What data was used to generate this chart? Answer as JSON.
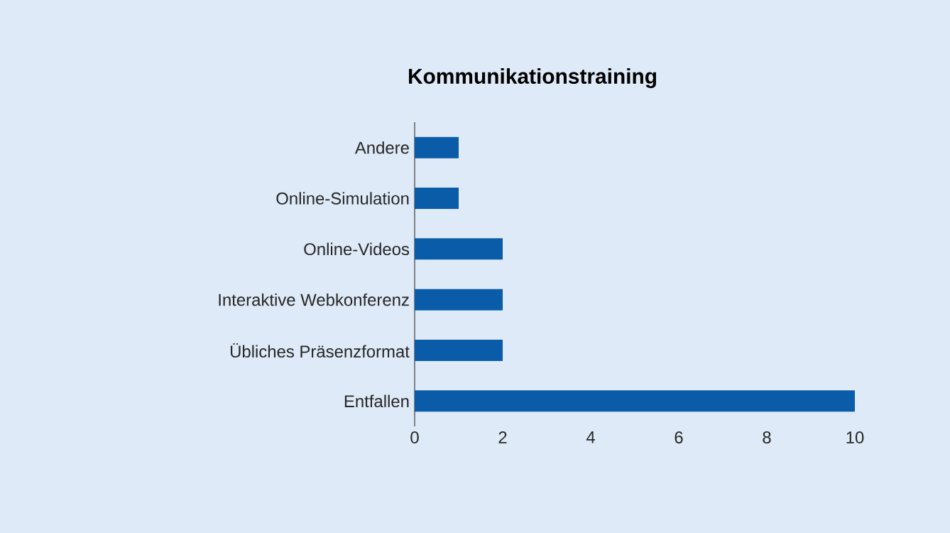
{
  "chart_data": {
    "type": "bar",
    "orientation": "horizontal",
    "title": "Kommunikationstraining",
    "categories": [
      "Andere",
      "Online-Simulation",
      "Online-Videos",
      "Interaktive Webkonferenz",
      "Übliches Präsenzformat",
      "Entfallen"
    ],
    "values": [
      1,
      1,
      2,
      2,
      2,
      10
    ],
    "color": "#0b5ca8",
    "xlim": [
      0,
      10
    ],
    "xticks": [
      0,
      2,
      4,
      6,
      8,
      10
    ],
    "grid": false
  }
}
